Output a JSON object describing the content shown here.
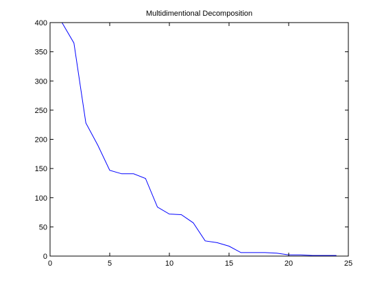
{
  "chart_data": {
    "type": "line",
    "title": "Multidimentional Decomposition",
    "xlabel": "",
    "ylabel": "",
    "xlim": [
      0,
      25
    ],
    "ylim": [
      0,
      400
    ],
    "xticks": [
      0,
      5,
      10,
      15,
      20,
      25
    ],
    "xtick_labels": [
      "0",
      "5",
      "10",
      "15",
      "20",
      "25"
    ],
    "yticks": [
      0,
      50,
      100,
      150,
      200,
      250,
      300,
      350,
      400
    ],
    "ytick_labels": [
      "0",
      "50",
      "100",
      "150",
      "200",
      "250",
      "300",
      "350",
      "400"
    ],
    "grid": false,
    "series": [
      {
        "color": "#0000ff",
        "x": [
          1,
          2,
          3,
          4,
          5,
          6,
          7,
          8,
          9,
          10,
          11,
          12,
          13,
          14,
          15,
          16,
          17,
          18,
          19,
          20,
          21,
          22,
          23,
          24
        ],
        "y": [
          400,
          365,
          228,
          190,
          147,
          141,
          141,
          133,
          84,
          72,
          71,
          57,
          26,
          23,
          17,
          6,
          6,
          6,
          5,
          2,
          2,
          1,
          1,
          1
        ]
      }
    ]
  }
}
